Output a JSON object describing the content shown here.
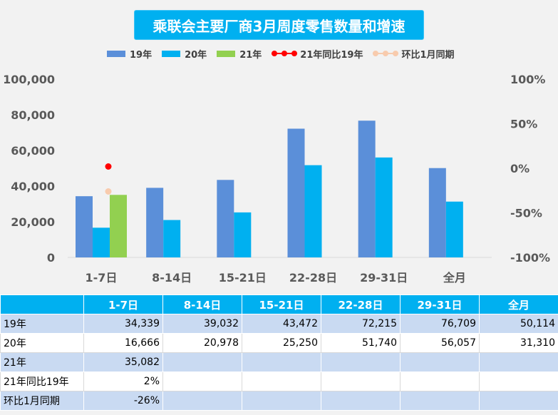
{
  "title": "乘联会主要厂商3月周度零售数量和增速",
  "colors": {
    "y19": "#5b8fd9",
    "y20": "#00b0f0",
    "y21": "#92d050",
    "yoy": "#ff0000",
    "mom": "#f8cbad"
  },
  "chart_data": {
    "type": "bar",
    "categories": [
      "1-7日",
      "8-14日",
      "15-21日",
      "22-28日",
      "29-31日",
      "全月"
    ],
    "series": [
      {
        "name": "19年",
        "values": [
          34339,
          39032,
          43472,
          72215,
          76709,
          50114
        ]
      },
      {
        "name": "20年",
        "values": [
          16666,
          20978,
          25250,
          51740,
          56057,
          31310
        ]
      },
      {
        "name": "21年",
        "values": [
          35082,
          null,
          null,
          null,
          null,
          null
        ]
      }
    ],
    "line_series": [
      {
        "name": "21年同比19年",
        "values": [
          0.02,
          null,
          null,
          null,
          null,
          null
        ],
        "axis": "right"
      },
      {
        "name": "环比1月同期",
        "values": [
          -0.26,
          null,
          null,
          null,
          null,
          null
        ],
        "axis": "right"
      }
    ],
    "left_axis": {
      "min": 0,
      "max": 100000,
      "ticks": [
        "0",
        "20,000",
        "40,000",
        "60,000",
        "80,000",
        "100,000"
      ]
    },
    "right_axis": {
      "min": -1,
      "max": 1,
      "ticks": [
        "-100%",
        "-50%",
        "0%",
        "50%",
        "100%"
      ]
    },
    "legend_position": "top"
  },
  "table": {
    "header": [
      "",
      "1-7日",
      "8-14日",
      "15-21日",
      "22-28日",
      "29-31日",
      "全月"
    ],
    "rows": [
      {
        "label": "19年",
        "cells": [
          "34,339",
          "39,032",
          "43,472",
          "72,215",
          "76,709",
          "50,114"
        ]
      },
      {
        "label": "20年",
        "cells": [
          "16,666",
          "20,978",
          "25,250",
          "51,740",
          "56,057",
          "31,310"
        ]
      },
      {
        "label": "21年",
        "cells": [
          "35,082",
          "",
          "",
          "",
          "",
          ""
        ]
      },
      {
        "label": "21年同比19年",
        "cells": [
          "2%",
          "",
          "",
          "",
          "",
          ""
        ]
      },
      {
        "label": "环比1月同期",
        "cells": [
          "-26%",
          "",
          "",
          "",
          "",
          ""
        ]
      }
    ]
  }
}
